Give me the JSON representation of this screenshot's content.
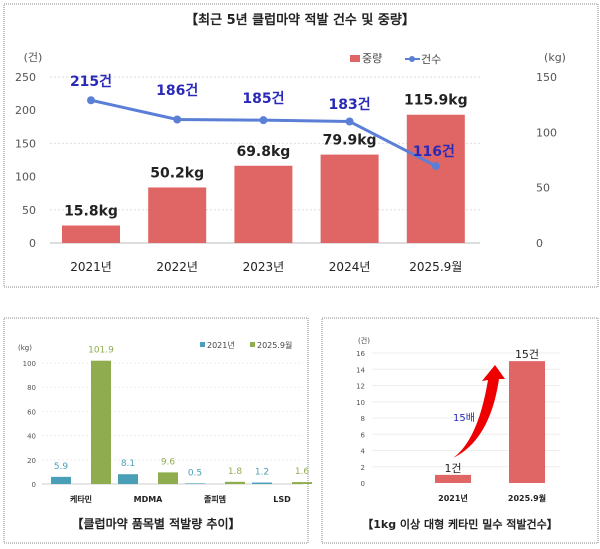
{
  "chart_data": [
    {
      "type": "bar+line",
      "title": "【최근 5년 클럽마약 적발 건수 및 중량】",
      "categories": [
        "2021년",
        "2022년",
        "2023년",
        "2024년",
        "2025.9월"
      ],
      "left_axis_label": "(건)",
      "right_axis_label": "(kg)",
      "left_ticks": [
        "0",
        "50",
        "100",
        "150",
        "200",
        "250"
      ],
      "left_ylim": [
        0,
        250
      ],
      "right_ticks": [
        "0",
        "50",
        "100",
        "150"
      ],
      "right_ylim": [
        0,
        150
      ],
      "series": [
        {
          "name": "중량",
          "type": "bar",
          "axis": "right",
          "values": [
            15.8,
            50.2,
            69.8,
            79.9,
            115.9
          ],
          "labels": [
            "15.8kg",
            "50.2kg",
            "69.8kg",
            "79.9kg",
            "115.9kg"
          ],
          "color": "#e06666"
        },
        {
          "name": "건수",
          "type": "line",
          "axis": "left",
          "values": [
            215,
            186,
            185,
            183,
            116
          ],
          "labels": [
            "215건",
            "186건",
            "185건",
            "183건",
            "116건"
          ],
          "color": "#5b7fd6"
        }
      ],
      "legend": "top-right",
      "grid": true
    },
    {
      "type": "bar",
      "title": "【클럽마약 품목별 적발량 추이】",
      "ylabel": "(kg)",
      "categories": [
        "케타민",
        "MDMA",
        "졸피뎀",
        "LSD"
      ],
      "ticks": [
        "0",
        "20",
        "40",
        "60",
        "80",
        "100"
      ],
      "ylim": [
        0,
        100
      ],
      "series": [
        {
          "name": "2021년",
          "values": [
            5.9,
            8.1,
            0.5,
            1.2
          ],
          "labels": [
            "5.9",
            "8.1",
            "0.5",
            "1.2"
          ],
          "color": "#4a9fb8"
        },
        {
          "name": "2025.9월",
          "values": [
            101.9,
            9.6,
            1.8,
            1.6
          ],
          "labels": [
            "101.9",
            "9.6",
            "1.8",
            "1.6"
          ],
          "color": "#8fad4f"
        }
      ],
      "legend": "top-right",
      "grid": true
    },
    {
      "type": "bar",
      "title": "【1kg 이상 대형 케타민 밀수 적발건수】",
      "ylabel": "(건)",
      "categories": [
        "2021년",
        "2025.9월"
      ],
      "ticks": [
        "0",
        "2",
        "4",
        "6",
        "8",
        "10",
        "12",
        "14",
        "16"
      ],
      "ylim": [
        0,
        16
      ],
      "series": [
        {
          "name": "적발건수",
          "values": [
            1,
            15
          ],
          "labels": [
            "1건",
            "15건"
          ],
          "color": "#e06666"
        }
      ],
      "annotation": "15배",
      "grid": true
    }
  ]
}
